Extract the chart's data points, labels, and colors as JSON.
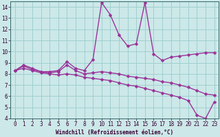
{
  "xlabel": "Windchill (Refroidissement éolien,°C)",
  "line_color": "#993399",
  "bg_color": "#cce8e8",
  "grid_color": "#99cccc",
  "xlim": [
    -0.5,
    23.5
  ],
  "ylim": [
    4,
    14.5
  ],
  "xticks": [
    0,
    1,
    2,
    3,
    4,
    5,
    6,
    7,
    8,
    9,
    10,
    11,
    12,
    13,
    14,
    15,
    16,
    17,
    18,
    19,
    20,
    21,
    22,
    23
  ],
  "yticks": [
    4,
    5,
    6,
    7,
    8,
    9,
    10,
    11,
    12,
    13,
    14
  ],
  "series1_x": [
    0,
    1,
    2,
    3,
    4,
    5,
    6,
    7,
    8,
    9,
    10,
    11,
    12,
    13,
    14,
    15,
    16,
    17,
    18,
    19,
    20,
    21,
    22,
    23
  ],
  "series1_y": [
    8.3,
    8.8,
    8.5,
    8.2,
    8.2,
    8.3,
    9.1,
    8.5,
    8.3,
    9.3,
    14.4,
    13.3,
    11.5,
    10.5,
    10.7,
    14.4,
    9.8,
    9.2,
    9.5,
    9.6,
    9.7,
    9.8,
    9.9,
    9.9
  ],
  "series2_x": [
    0,
    1,
    2,
    3,
    4,
    5,
    6,
    7,
    8,
    9,
    10,
    11,
    12,
    13,
    14,
    15,
    16,
    17,
    18,
    19,
    20,
    21,
    22,
    23
  ],
  "series2_y": [
    8.3,
    8.7,
    8.4,
    8.2,
    8.1,
    8.2,
    8.8,
    8.3,
    8.0,
    8.1,
    8.2,
    8.1,
    8.0,
    7.8,
    7.7,
    7.6,
    7.5,
    7.3,
    7.2,
    7.0,
    6.8,
    6.5,
    6.2,
    6.1
  ],
  "series3_x": [
    0,
    1,
    2,
    3,
    4,
    5,
    6,
    7,
    8,
    9,
    10,
    11,
    12,
    13,
    14,
    15,
    16,
    17,
    18,
    19,
    20,
    21,
    22,
    23
  ],
  "series3_y": [
    8.3,
    8.5,
    8.3,
    8.1,
    8.0,
    7.9,
    8.0,
    7.9,
    7.7,
    7.6,
    7.5,
    7.4,
    7.2,
    7.0,
    6.9,
    6.7,
    6.5,
    6.3,
    6.1,
    5.9,
    5.6,
    4.3,
    4.0,
    5.5
  ],
  "marker": "D",
  "marker_size": 2.5,
  "linewidth": 1.0,
  "tick_fontsize": 5.5,
  "xlabel_fontsize": 5.5
}
